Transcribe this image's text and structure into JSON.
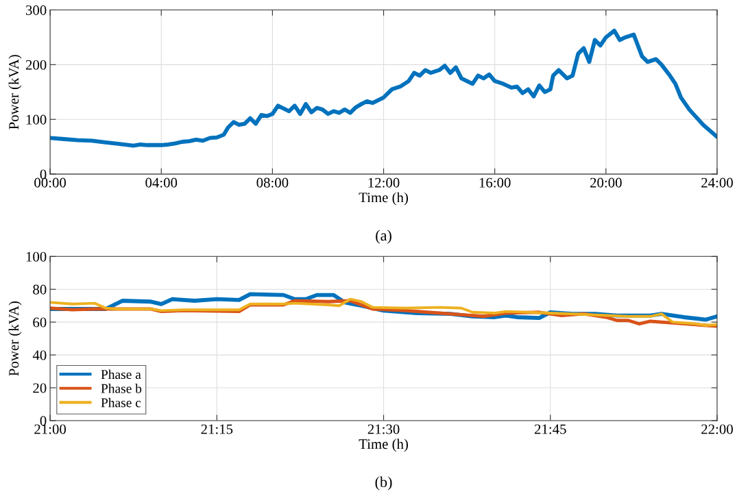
{
  "chart_data": [
    {
      "type": "line",
      "xlabel": "Time (h)",
      "ylabel": "Power (kVA)",
      "annotations": [
        "(a)"
      ],
      "grid": true,
      "xlim": [
        0,
        24
      ],
      "xticks": [
        {
          "value": 0,
          "label": "00:00"
        },
        {
          "value": 4,
          "label": "04:00"
        },
        {
          "value": 8,
          "label": "08:00"
        },
        {
          "value": 12,
          "label": "12:00"
        },
        {
          "value": 16,
          "label": "16:00"
        },
        {
          "value": 20,
          "label": "20:00"
        },
        {
          "value": 24,
          "label": "24:00"
        }
      ],
      "ylim": [
        0,
        300
      ],
      "yticks": [
        0,
        100,
        200,
        300
      ],
      "series": [
        {
          "color": "#0072bd",
          "x": [
            0,
            0.5,
            1,
            1.5,
            2,
            2.5,
            3,
            3.25,
            3.5,
            4,
            4.25,
            4.5,
            4.75,
            5,
            5.25,
            5.5,
            5.75,
            6,
            6.25,
            6.4,
            6.6,
            6.8,
            7,
            7.2,
            7.4,
            7.6,
            7.8,
            8,
            8.2,
            8.4,
            8.6,
            8.8,
            9,
            9.2,
            9.4,
            9.6,
            9.8,
            10,
            10.2,
            10.4,
            10.6,
            10.8,
            11,
            11.2,
            11.4,
            11.6,
            12,
            12.3,
            12.6,
            12.9,
            13.1,
            13.3,
            13.5,
            13.7,
            14,
            14.2,
            14.4,
            14.6,
            14.8,
            15,
            15.2,
            15.4,
            15.6,
            15.8,
            16,
            16.3,
            16.6,
            16.8,
            17,
            17.2,
            17.4,
            17.6,
            17.8,
            18,
            18.1,
            18.3,
            18.6,
            18.8,
            19,
            19.2,
            19.4,
            19.6,
            19.8,
            20,
            20.3,
            20.5,
            20.7,
            21,
            21.3,
            21.5,
            21.8,
            22,
            22.3,
            22.5,
            22.7,
            23,
            23.5,
            24
          ],
          "values": [
            66,
            64,
            62,
            61,
            58,
            55,
            52,
            54,
            53,
            53,
            54,
            56,
            59,
            60,
            63,
            61,
            66,
            67,
            72,
            85,
            95,
            90,
            92,
            102,
            92,
            108,
            106,
            110,
            125,
            120,
            115,
            125,
            110,
            128,
            113,
            121,
            118,
            110,
            115,
            112,
            118,
            112,
            122,
            128,
            133,
            130,
            140,
            155,
            160,
            170,
            185,
            180,
            190,
            185,
            190,
            198,
            185,
            195,
            175,
            170,
            165,
            180,
            175,
            182,
            170,
            165,
            158,
            160,
            148,
            155,
            142,
            162,
            150,
            155,
            180,
            190,
            175,
            180,
            220,
            230,
            205,
            245,
            235,
            250,
            262,
            245,
            250,
            255,
            215,
            205,
            210,
            200,
            180,
            165,
            140,
            118,
            90,
            68
          ]
        }
      ]
    },
    {
      "type": "line",
      "xlabel": "Time (h)",
      "ylabel": "Power (kVA)",
      "annotations": [
        "(b)"
      ],
      "grid": true,
      "legend": "bottom left",
      "xlim": [
        21,
        22
      ],
      "xticks": [
        {
          "value": 21,
          "label": "21:00"
        },
        {
          "value": 21.25,
          "label": "21:15"
        },
        {
          "value": 21.5,
          "label": "21:30"
        },
        {
          "value": 21.75,
          "label": "21:45"
        },
        {
          "value": 22,
          "label": "22:00"
        }
      ],
      "ylim": [
        0,
        100
      ],
      "yticks": [
        0,
        20,
        40,
        60,
        80,
        100
      ],
      "series": [
        {
          "name": "Phase a",
          "color": "#0072bd",
          "x": [
            21,
            21.0833,
            21.1083,
            21.15,
            21.1667,
            21.1833,
            21.2167,
            21.25,
            21.2833,
            21.3,
            21.35,
            21.3667,
            21.3833,
            21.4,
            21.425,
            21.4417,
            21.4667,
            21.5,
            21.55,
            21.6,
            21.6333,
            21.6667,
            21.6833,
            21.7,
            21.7333,
            21.75,
            21.7833,
            21.8167,
            21.85,
            21.9,
            21.9167,
            21.95,
            21.9833,
            22
          ],
          "values": [
            68,
            68,
            73,
            72.5,
            71,
            74,
            73,
            74,
            73.5,
            77,
            76.5,
            74,
            74,
            76.5,
            76.5,
            72,
            70,
            67,
            65.5,
            65,
            63.5,
            63,
            64,
            63,
            62.5,
            66,
            65,
            65,
            64,
            64,
            65,
            63,
            61.5,
            63.5
          ]
        },
        {
          "name": "Phase b",
          "color": "#d95319",
          "x": [
            21,
            21.0333,
            21.0667,
            21.1,
            21.15,
            21.1667,
            21.2,
            21.2833,
            21.3,
            21.35,
            21.3667,
            21.4167,
            21.45,
            21.4833,
            21.5333,
            21.5833,
            21.6167,
            21.65,
            21.6833,
            21.7333,
            21.7667,
            21.8,
            21.8333,
            21.85,
            21.8667,
            21.8833,
            21.9,
            21.9333,
            21.9833,
            22
          ],
          "values": [
            68.5,
            67.5,
            68,
            68,
            68,
            66.5,
            67,
            66.5,
            70.5,
            70.5,
            73,
            72.5,
            73,
            68,
            67,
            65.5,
            64.5,
            63.5,
            65.5,
            66,
            64,
            65,
            63,
            61,
            61,
            59,
            60.5,
            59.5,
            58,
            57.5
          ]
        },
        {
          "name": "Phase c",
          "color": "#edb120",
          "x": [
            21,
            21.0333,
            21.0667,
            21.0833,
            21.1,
            21.15,
            21.1667,
            21.2,
            21.2833,
            21.3,
            21.35,
            21.3667,
            21.4167,
            21.4333,
            21.45,
            21.4667,
            21.4833,
            21.5333,
            21.5833,
            21.6167,
            21.6333,
            21.6667,
            21.6833,
            21.7167,
            21.75,
            21.7833,
            21.8667,
            21.9,
            21.9167,
            21.9333,
            21.9667,
            21.9833,
            22
          ],
          "values": [
            72,
            71,
            71.5,
            68.5,
            68,
            68,
            67,
            67.5,
            67.5,
            71,
            71,
            71.5,
            70.5,
            70,
            74,
            72.5,
            69,
            68.5,
            69,
            68.5,
            66,
            65.5,
            66.5,
            66,
            65.5,
            65,
            63.5,
            63.5,
            65,
            60,
            59,
            58,
            58.5
          ]
        }
      ]
    }
  ]
}
